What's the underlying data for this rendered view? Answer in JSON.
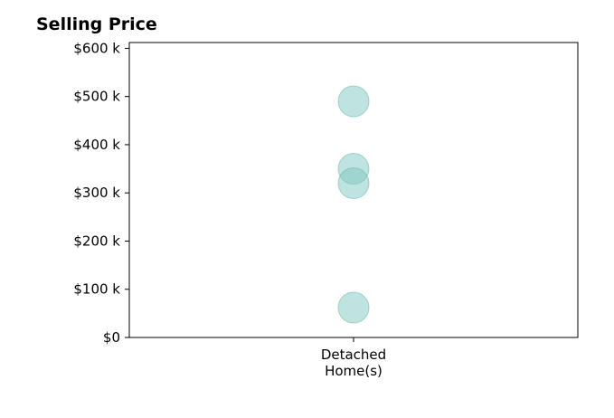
{
  "chart_data": {
    "type": "scatter",
    "title": "Selling Price",
    "xlabel": "",
    "ylabel": "",
    "categories": [
      [
        "Detached",
        "Home(s)"
      ]
    ],
    "series": [
      {
        "category_index": 0,
        "values": [
          490000,
          350000,
          320000,
          62000
        ]
      }
    ],
    "ylim": [
      0,
      612000
    ],
    "yticks": [
      0,
      100000,
      200000,
      300000,
      400000,
      500000,
      600000
    ],
    "ytick_labels": [
      "$0",
      "$100 k",
      "$200 k",
      "$300 k",
      "$400 k",
      "$500 k",
      "$600 k"
    ],
    "grid": false,
    "legend": "none",
    "marker_color": "#7fc8c0",
    "marker_edge_color": "#5fb3aa"
  }
}
